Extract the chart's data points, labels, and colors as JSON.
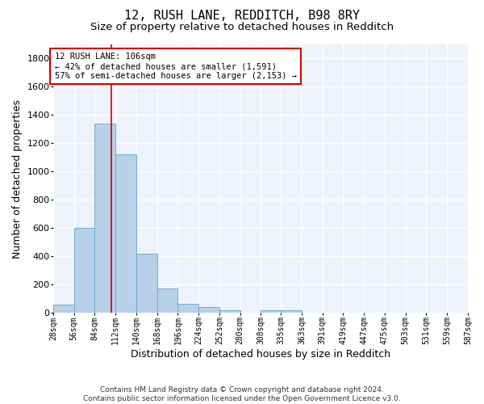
{
  "title": "12, RUSH LANE, REDDITCH, B98 8RY",
  "subtitle": "Size of property relative to detached houses in Redditch",
  "xlabel": "Distribution of detached houses by size in Redditch",
  "ylabel": "Number of detached properties",
  "bin_edges": [
    28,
    56,
    84,
    112,
    140,
    168,
    196,
    224,
    252,
    280,
    308,
    335,
    363,
    391,
    419,
    447,
    475,
    503,
    531,
    559,
    587
  ],
  "bar_heights": [
    60,
    600,
    1340,
    1120,
    420,
    170,
    65,
    40,
    20,
    0,
    20,
    20,
    0,
    0,
    0,
    0,
    0,
    0,
    0,
    0
  ],
  "bar_color": "#b8d0e8",
  "bar_edge_color": "#6aaed6",
  "ylim": [
    0,
    1900
  ],
  "yticks": [
    0,
    200,
    400,
    600,
    800,
    1000,
    1200,
    1400,
    1600,
    1800
  ],
  "property_sqm": 106,
  "red_line_color": "#cc0000",
  "annotation_text": "12 RUSH LANE: 106sqm\n← 42% of detached houses are smaller (1,591)\n57% of semi-detached houses are larger (2,153) →",
  "annotation_box_color": "#ffffff",
  "annotation_box_edge_color": "#cc0000",
  "background_color": "#eef2fb",
  "grid_color": "#ffffff",
  "title_fontsize": 11,
  "subtitle_fontsize": 9.5,
  "xlabel_fontsize": 9,
  "ylabel_fontsize": 9,
  "tick_fontsize": 7,
  "footer_text": "Contains HM Land Registry data © Crown copyright and database right 2024.\nContains public sector information licensed under the Open Government Licence v3.0.",
  "footer_fontsize": 6.5
}
